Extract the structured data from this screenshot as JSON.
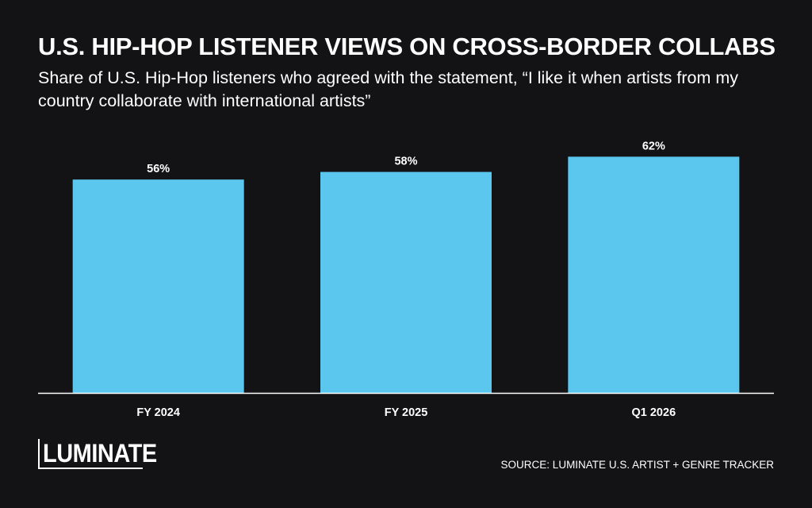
{
  "header": {
    "title": "U.S. HIP-HOP LISTENER VIEWS ON CROSS-BORDER COLLABS",
    "subtitle": "Share of U.S. Hip-Hop listeners who agreed with the statement, “I like it when artists from my country collaborate with international artists”"
  },
  "footer": {
    "logo_text": "LUMINATE",
    "source": "SOURCE: LUMINATE U.S. ARTIST + GENRE TRACKER"
  },
  "colors": {
    "background": "#131316",
    "bar": "#5BC7EE",
    "text": "#FFFFFF",
    "axis": "#FFFFFF"
  },
  "chart_data": {
    "type": "bar",
    "title": "U.S. HIP-HOP LISTENER VIEWS ON CROSS-BORDER COLLABS",
    "subtitle": "Share of U.S. Hip-Hop listeners who agreed with the statement, “I like it when artists from my country collaborate with international artists”",
    "categories": [
      "FY 2024",
      "FY 2025",
      "Q1 2026"
    ],
    "values": [
      56,
      58,
      62
    ],
    "data_labels": [
      "56%",
      "58%",
      "62%"
    ],
    "unit": "%",
    "xlabel": "",
    "ylabel": "",
    "ylim": [
      0,
      100
    ],
    "grid": false,
    "legend": "none"
  }
}
